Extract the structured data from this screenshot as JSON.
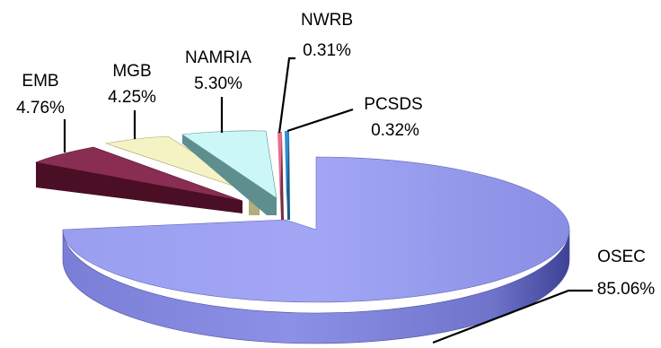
{
  "chart_data": {
    "type": "pie",
    "style": "3d-exploded",
    "title": "",
    "slices": [
      {
        "name": "OSEC",
        "value": 85.06,
        "label": "85.06%",
        "color": "#8F93EC",
        "side": "#5E62B8"
      },
      {
        "name": "EMB",
        "value": 4.76,
        "label": "4.76%",
        "color": "#8A2D52",
        "side": "#4A0F25"
      },
      {
        "name": "MGB",
        "value": 4.25,
        "label": "4.25%",
        "color": "#F5F3C4",
        "side": "#B3AE7A"
      },
      {
        "name": "NAMRIA",
        "value": 5.3,
        "label": "5.30%",
        "color": "#CCF7F7",
        "side": "#5E8F8E"
      },
      {
        "name": "NWRB",
        "value": 0.31,
        "label": "0.31%",
        "color": "#E6708E",
        "side": "#7A2A45"
      },
      {
        "name": "PCSDS",
        "value": 0.32,
        "label": "0.32%",
        "color": "#2B8FD0",
        "side": "#1B5C88"
      }
    ]
  }
}
